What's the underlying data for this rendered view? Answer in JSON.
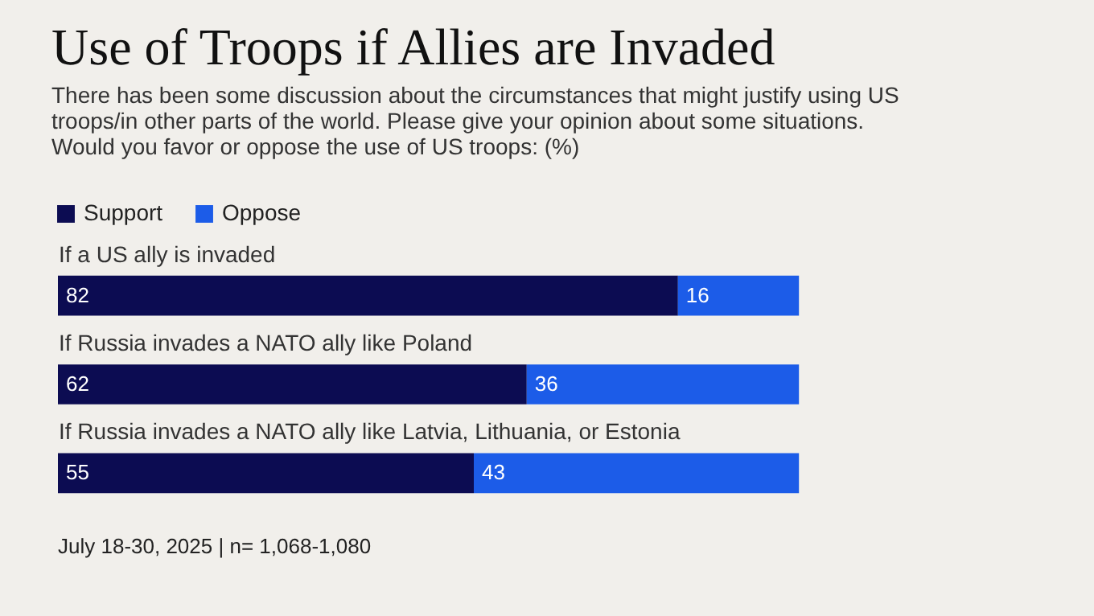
{
  "chart_data": {
    "type": "bar",
    "orientation": "horizontal",
    "stacked": true,
    "title": "Use of Troops if Allies are Invaded",
    "subtitle": "There has been some discussion about the circumstances that might justify using US troops/in other parts of the world. Please give your opinion about some situations. Would you favor or oppose the use of US troops: (%)",
    "categories": [
      "If a US ally is invaded",
      "If Russia invades a NATO ally like Poland",
      "If Russia invades a NATO ally like Latvia, Lithuania, or Estonia"
    ],
    "series": [
      {
        "name": "Support",
        "color": "#0c0c52",
        "values": [
          82,
          62,
          55
        ]
      },
      {
        "name": "Oppose",
        "color": "#1c5ce8",
        "values": [
          16,
          36,
          43
        ]
      }
    ],
    "data_labels": true,
    "legend": "top left",
    "annotations": [
      "July 18-30, 2025 | n= 1,068-1,080"
    ]
  }
}
